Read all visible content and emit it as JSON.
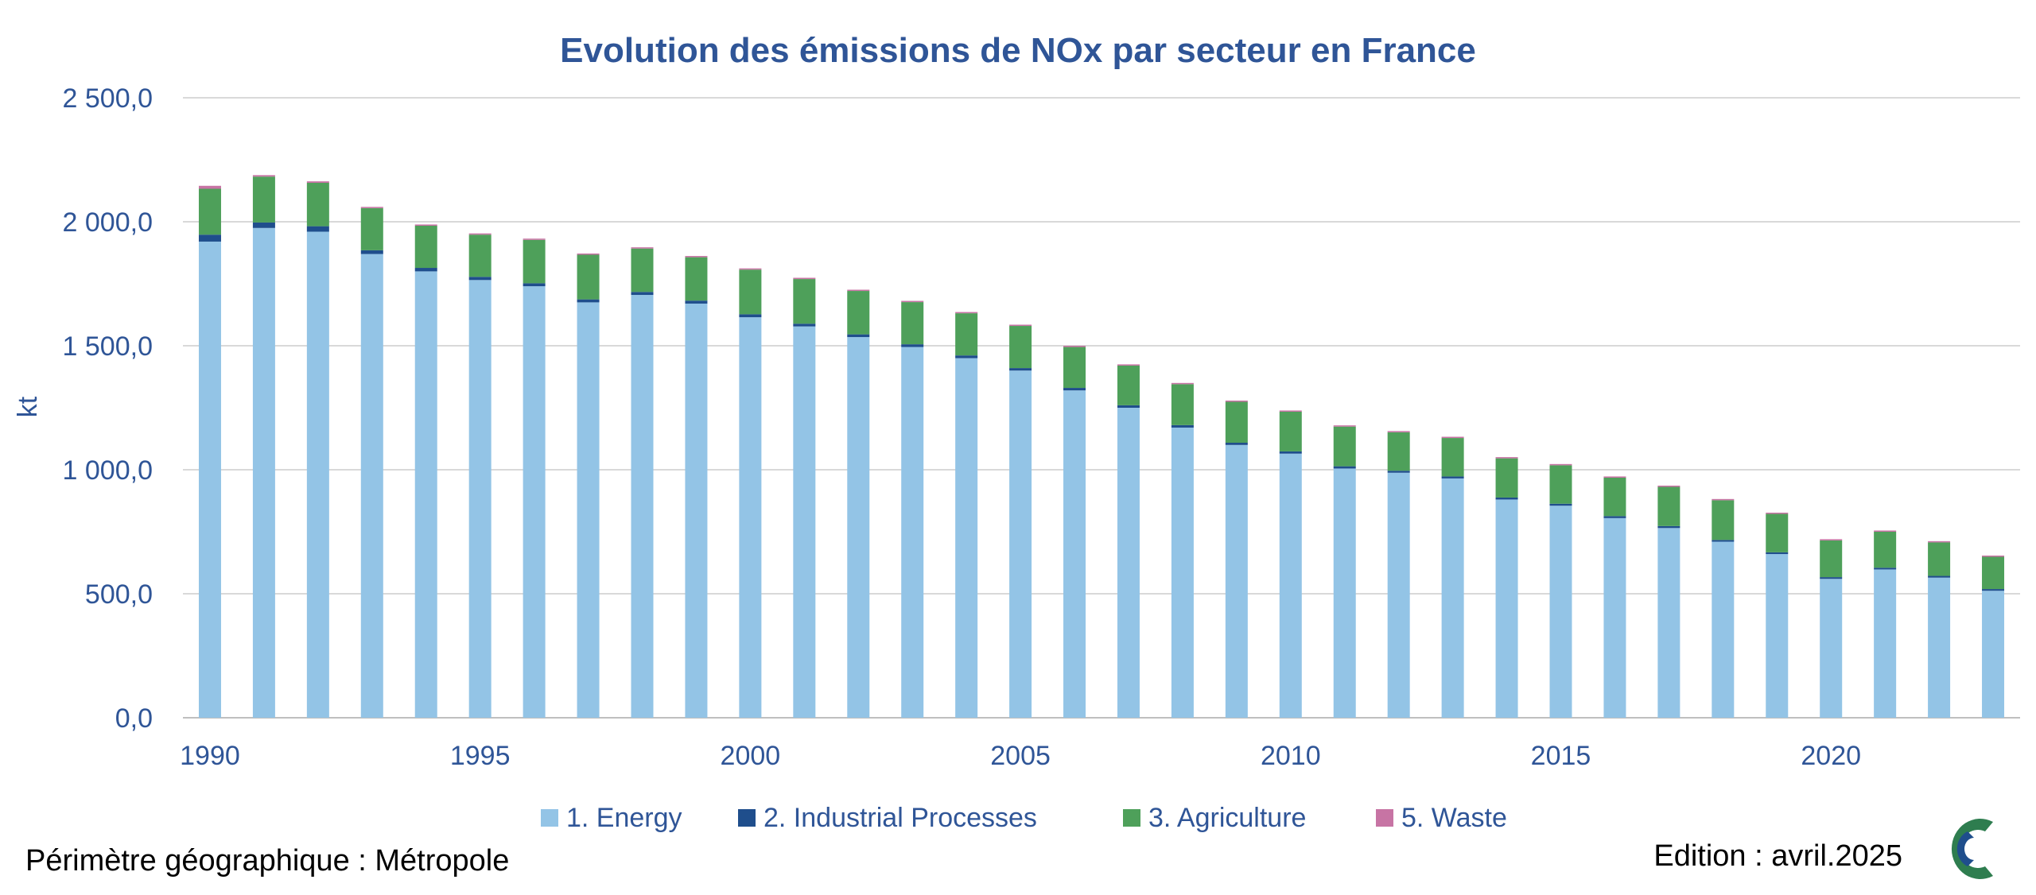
{
  "chart_data": {
    "type": "bar",
    "stacked": true,
    "title": "Evolution des émissions de NOx par secteur en France",
    "xlabel": "",
    "ylabel": "kt",
    "ylim": [
      0,
      2500
    ],
    "yticks": [
      "0,0",
      "500,0",
      "1 000,0",
      "1 500,0",
      "2 000,0",
      "2 500,0"
    ],
    "ytick_values": [
      0,
      500,
      1000,
      1500,
      2000,
      2500
    ],
    "xtick_labels": [
      "1990",
      "1995",
      "2000",
      "2005",
      "2010",
      "2015",
      "2020"
    ],
    "categories": [
      1990,
      1991,
      1992,
      1993,
      1994,
      1995,
      1996,
      1997,
      1998,
      1999,
      2000,
      2001,
      2002,
      2003,
      2004,
      2005,
      2006,
      2007,
      2008,
      2009,
      2010,
      2011,
      2012,
      2013,
      2014,
      2015,
      2016,
      2017,
      2018,
      2019,
      2020,
      2021,
      2022,
      2023
    ],
    "series": [
      {
        "name": "1. Energy",
        "color": "#93c4e6",
        "values": [
          1920,
          1975,
          1960,
          1870,
          1800,
          1765,
          1740,
          1675,
          1705,
          1670,
          1615,
          1578,
          1535,
          1495,
          1450,
          1400,
          1320,
          1250,
          1170,
          1100,
          1065,
          1005,
          988,
          965,
          880,
          855,
          805,
          765,
          710,
          660,
          560,
          598,
          565,
          512
        ]
      },
      {
        "name": "2.  Industrial Processes",
        "color": "#1f4e8c",
        "values": [
          28,
          22,
          22,
          15,
          14,
          13,
          12,
          12,
          12,
          12,
          12,
          11,
          11,
          11,
          11,
          10,
          10,
          10,
          10,
          9,
          9,
          9,
          8,
          8,
          8,
          8,
          8,
          8,
          7,
          7,
          7,
          7,
          7,
          7
        ]
      },
      {
        "name": "3.  Agriculture",
        "color": "#4ea05a",
        "values": [
          185,
          185,
          175,
          170,
          170,
          170,
          175,
          180,
          175,
          175,
          180,
          180,
          175,
          170,
          170,
          170,
          165,
          160,
          165,
          165,
          160,
          160,
          155,
          155,
          158,
          155,
          155,
          158,
          160,
          155,
          148,
          145,
          135,
          130
        ]
      },
      {
        "name": "5.  Waste",
        "color": "#c774a4",
        "values": [
          12,
          6,
          6,
          5,
          5,
          5,
          5,
          5,
          5,
          5,
          5,
          5,
          5,
          5,
          5,
          5,
          5,
          5,
          5,
          5,
          5,
          5,
          5,
          5,
          5,
          5,
          5,
          5,
          5,
          5,
          5,
          5,
          5,
          5
        ]
      }
    ]
  },
  "footer": {
    "perimeter": "Périmètre géographique : Métropole",
    "edition": "Edition : avril.2025"
  },
  "logo": {
    "name": "citepa-logo-icon"
  }
}
